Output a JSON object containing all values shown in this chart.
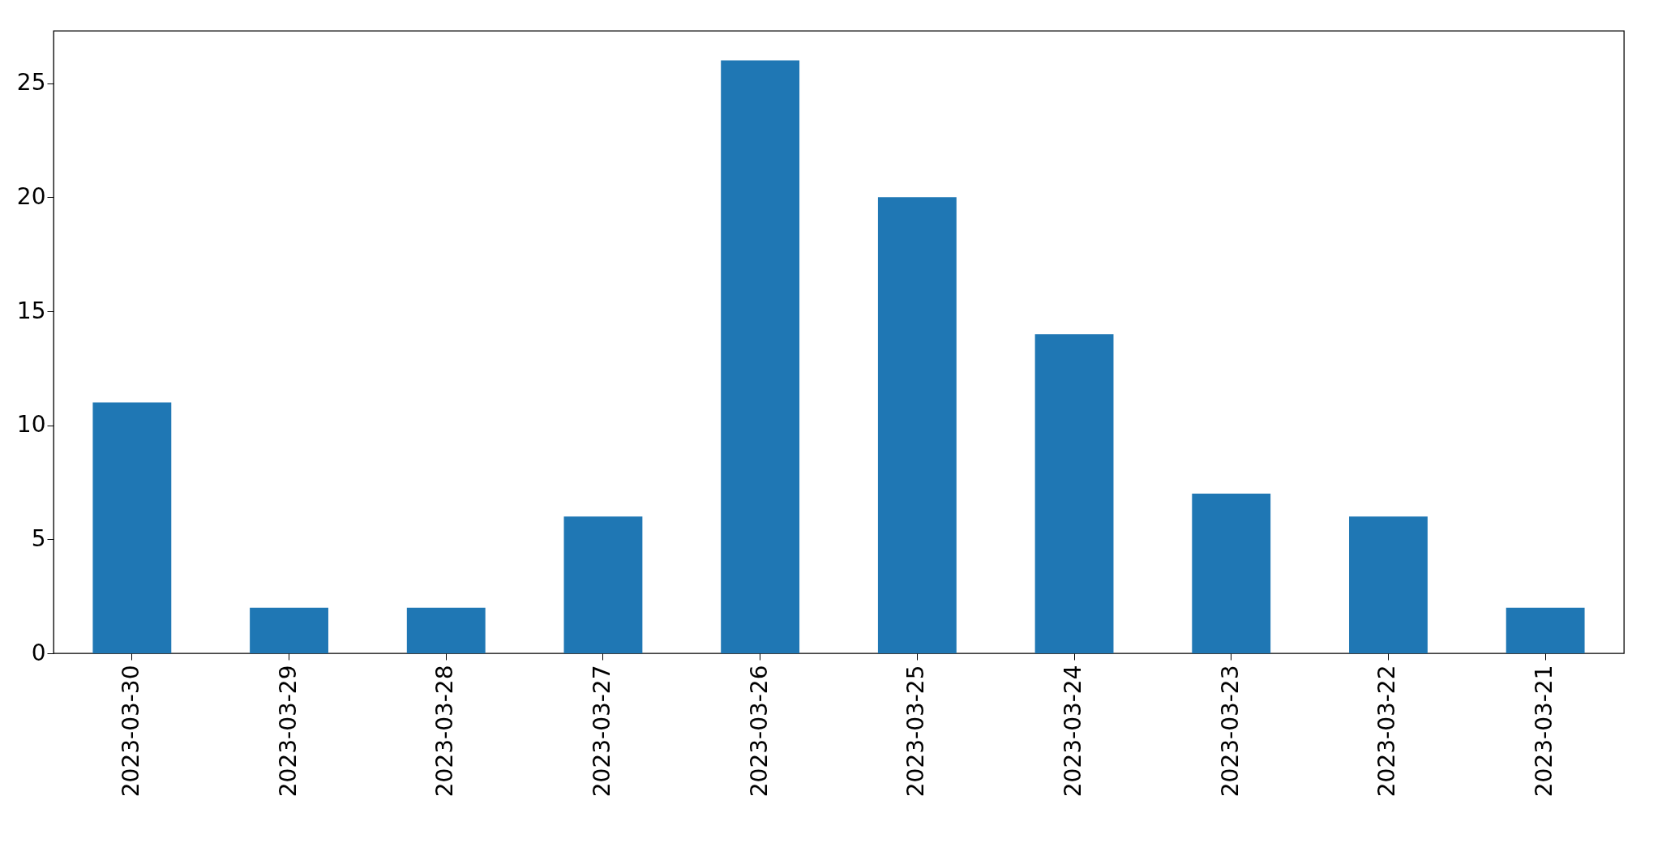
{
  "chart_data": {
    "type": "bar",
    "categories": [
      "2023-03-30",
      "2023-03-29",
      "2023-03-28",
      "2023-03-27",
      "2023-03-26",
      "2023-03-25",
      "2023-03-24",
      "2023-03-23",
      "2023-03-22",
      "2023-03-21"
    ],
    "values": [
      11,
      2,
      2,
      6,
      26,
      20,
      14,
      7,
      6,
      2
    ],
    "color": "#1f77b4",
    "ylim": [
      0,
      27.3
    ],
    "yticks": [
      0,
      5,
      10,
      15,
      20,
      25
    ],
    "grid": false
  }
}
